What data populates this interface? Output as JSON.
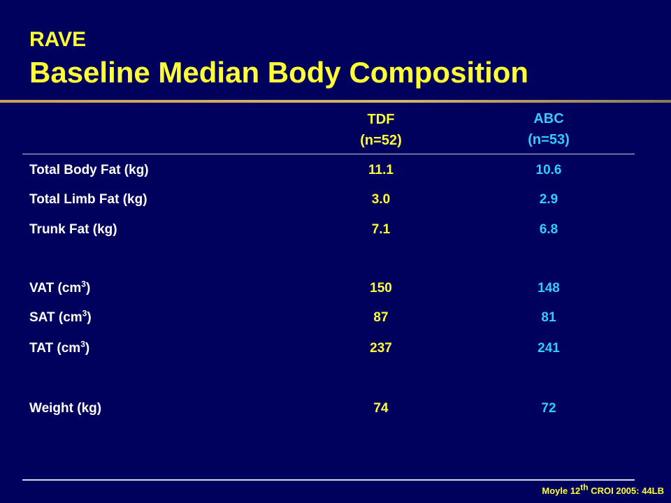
{
  "slide": {
    "top_label": "RAVE",
    "title": "Baseline Median Body Composition"
  },
  "columns": [
    {
      "name": "TDF",
      "n": "(n=52)"
    },
    {
      "name": "ABC",
      "n": "(n=53)"
    }
  ],
  "rows": [
    {
      "label": "Total Body Fat (kg)",
      "tdf": "11.1",
      "abc": "10.6"
    },
    {
      "label": "Total Limb Fat (kg)",
      "tdf": "3.0",
      "abc": "2.9"
    },
    {
      "label": "Trunk Fat (kg)",
      "tdf": "7.1",
      "abc": "6.8"
    },
    {
      "label_prefix": "VAT (cm",
      "label_sup": "3",
      "label_suffix": ")",
      "tdf": "150",
      "abc": "148"
    },
    {
      "label_prefix": "SAT (cm",
      "label_sup": "3",
      "label_suffix": ")",
      "tdf": "87",
      "abc": "81"
    },
    {
      "label_prefix": "TAT (cm",
      "label_sup": "3",
      "label_suffix": ")",
      "tdf": "237",
      "abc": "241"
    },
    {
      "label": "Weight (kg)",
      "tdf": "74",
      "abc": "72"
    }
  ],
  "citation": {
    "prefix": "Moyle 12",
    "sup": "th",
    "suffix": " CROI 2005: 44LB"
  },
  "colors": {
    "background": "#00015d",
    "title": "#ffff33",
    "tdf": "#ffff33",
    "abc": "#33ccff",
    "label": "#ffffff",
    "accent_bar": "#c9a35a"
  }
}
